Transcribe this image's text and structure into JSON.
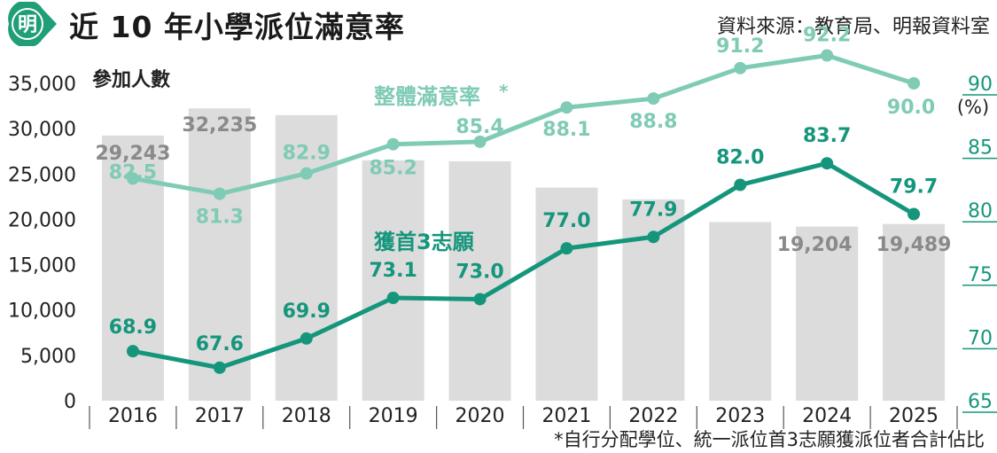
{
  "header": {
    "logo_text": "明",
    "title": "近 10 年小學派位滿意率",
    "source": "資料來源：教育局、明報資料室"
  },
  "footnote": "*自行分配學位、統一派位首3志願獲派位者合計佔比",
  "colors": {
    "bar": "#dcdcdc",
    "bar_label": "#8a8a8a",
    "overall_line": "#7fcbb5",
    "top3_line": "#15967c",
    "right_axis": "#15967c",
    "logo_green": "#1f9e78"
  },
  "chart_data": {
    "type": "bar+line",
    "categories": [
      "2016",
      "2017",
      "2018",
      "2019",
      "2020",
      "2021",
      "2022",
      "2023",
      "2024",
      "2025"
    ],
    "bars": {
      "name": "參加人數",
      "values": [
        29243,
        32235,
        31500,
        26500,
        26400,
        23500,
        22200,
        19700,
        19204,
        19489
      ],
      "labels": [
        "29,243",
        "32,235",
        "",
        "",
        "",
        "",
        "",
        "",
        "19,204",
        "19,489"
      ]
    },
    "left_axis": {
      "label": "參加人數",
      "ylim": [
        0,
        35000
      ],
      "ticks": [
        "0",
        "5,000",
        "10,000",
        "15,000",
        "20,000",
        "25,000",
        "30,000",
        "35,000"
      ]
    },
    "right_axis": {
      "unit": "(%)",
      "ylim": [
        65,
        90
      ],
      "ticks": [
        "65",
        "70",
        "75",
        "80",
        "85",
        "90"
      ]
    },
    "series": [
      {
        "name": "整體滿意率",
        "marker": "*",
        "values": [
          82.5,
          81.3,
          82.9,
          85.2,
          85.4,
          88.1,
          88.8,
          91.2,
          92.2,
          90.0
        ],
        "labels": [
          "82.5",
          "81.3",
          "82.9",
          "85.2",
          "85.4",
          "88.1",
          "88.8",
          "91.2",
          "92.2",
          "90.0"
        ]
      },
      {
        "name": "獲首3志願",
        "values": [
          68.9,
          67.6,
          69.9,
          73.1,
          73.0,
          77.0,
          77.9,
          82.0,
          83.7,
          79.7
        ],
        "labels": [
          "68.9",
          "67.6",
          "69.9",
          "73.1",
          "73.0",
          "77.0",
          "77.9",
          "82.0",
          "83.7",
          "79.7"
        ]
      }
    ]
  }
}
